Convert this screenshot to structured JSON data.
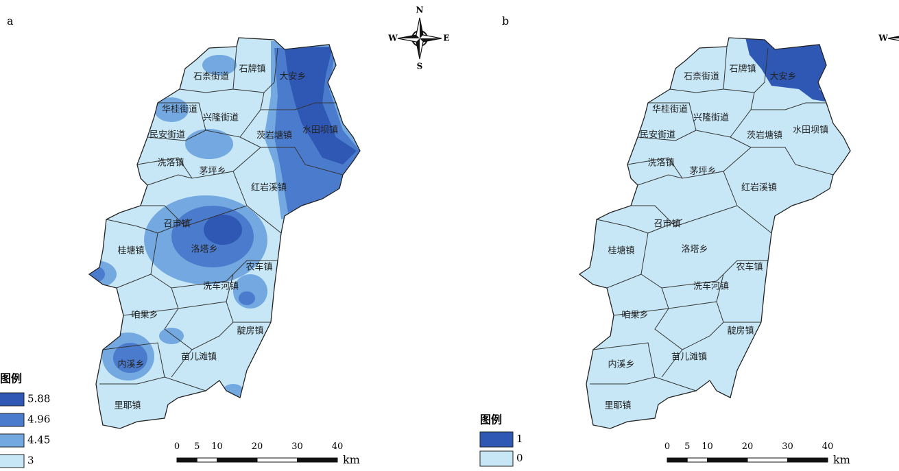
{
  "panels": [
    {
      "label": "a",
      "legend": {
        "title": "图例",
        "items": [
          {
            "value": 5.88,
            "color": "#2f58b5"
          },
          {
            "value": 4.96,
            "color": "#4b7bcd"
          },
          {
            "value": 4.45,
            "color": "#73a9e0"
          },
          {
            "value": 3,
            "color": "#c7e7f6"
          }
        ]
      }
    },
    {
      "label": "b",
      "legend": {
        "title": "图例",
        "items": [
          {
            "value": 1,
            "color": "#2f58b5"
          },
          {
            "value": 0,
            "color": "#c7e7f6"
          }
        ]
      }
    }
  ],
  "towns": [
    "石柰街道",
    "石牌镇",
    "大安乡",
    "华桂街道",
    "兴隆街道",
    "民安街道",
    "茨岩塘镇",
    "水田坝镇",
    "洗洛镇",
    "茅坪乡",
    "红岩溪镇",
    "召市镇",
    "桂塘镇",
    "洛塔乡",
    "农车镇",
    "洗车河镇",
    "咱果乡",
    "靛房镇",
    "内溪乡",
    "苗儿滩镇",
    "里耶镇"
  ],
  "scale": {
    "ticks": [
      0,
      5,
      10,
      20,
      30,
      40
    ],
    "unit": "km"
  },
  "compass": {
    "n": "N",
    "w": "W",
    "e": "E",
    "s": "S"
  }
}
